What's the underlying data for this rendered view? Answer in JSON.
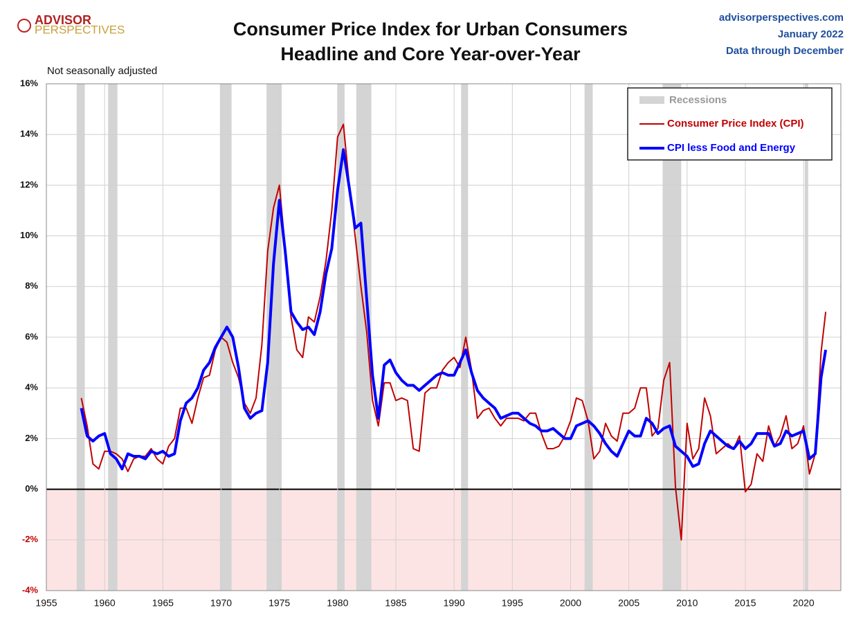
{
  "chart_data": {
    "type": "line",
    "logo": [
      "ADVISOR",
      "PERSPECTIVES"
    ],
    "title": "Consumer Price Index for Urban Consumers",
    "subtitle": "Headline and Core Year-over-Year",
    "source": [
      "advisorperspectives.com",
      "January 2022",
      "Data through December"
    ],
    "note": "Not seasonally adjusted",
    "xlim": [
      1955,
      2023.2
    ],
    "xticks": [
      1955,
      1960,
      1965,
      1970,
      1975,
      1980,
      1985,
      1990,
      1995,
      2000,
      2005,
      2010,
      2015,
      2020
    ],
    "ylim": [
      -4,
      16
    ],
    "yticks": [
      {
        "value": -4,
        "label": "-4%"
      },
      {
        "value": -2,
        "label": "-2%"
      },
      {
        "value": 0,
        "label": "0%"
      },
      {
        "value": 2,
        "label": "2%"
      },
      {
        "value": 4,
        "label": "4%"
      },
      {
        "value": 6,
        "label": "6%"
      },
      {
        "value": 8,
        "label": "8%"
      },
      {
        "value": 10,
        "label": "10%"
      },
      {
        "value": 12,
        "label": "12%"
      },
      {
        "value": 14,
        "label": "14%"
      },
      {
        "value": 16,
        "label": "16%"
      }
    ],
    "grid": true,
    "legend": "top-right",
    "recession_label": "Recessions",
    "recession_color": "#d4d4d4",
    "recessions": [
      {
        "start": 1957.6,
        "end": 1958.3
      },
      {
        "start": 1960.3,
        "end": 1961.1
      },
      {
        "start": 1969.9,
        "end": 1970.9
      },
      {
        "start": 1973.9,
        "end": 1975.2
      },
      {
        "start": 1980.0,
        "end": 1980.6
      },
      {
        "start": 1981.6,
        "end": 1982.9
      },
      {
        "start": 1990.6,
        "end": 1991.2
      },
      {
        "start": 2001.2,
        "end": 2001.9
      },
      {
        "start": 2007.9,
        "end": 2009.5
      },
      {
        "start": 2020.1,
        "end": 2020.4
      }
    ],
    "x": [
      1958,
      1958.5,
      1959,
      1959.5,
      1960,
      1960.5,
      1961,
      1961.5,
      1962,
      1962.5,
      1963,
      1963.5,
      1964,
      1964.5,
      1965,
      1965.5,
      1966,
      1966.5,
      1967,
      1967.5,
      1968,
      1968.5,
      1969,
      1969.5,
      1970,
      1970.5,
      1971,
      1971.5,
      1972,
      1972.5,
      1973,
      1973.5,
      1974,
      1974.5,
      1975,
      1975.5,
      1976,
      1976.5,
      1977,
      1977.5,
      1978,
      1978.5,
      1979,
      1979.5,
      1980,
      1980.5,
      1981,
      1981.5,
      1982,
      1982.5,
      1983,
      1983.5,
      1984,
      1984.5,
      1985,
      1985.5,
      1986,
      1986.5,
      1987,
      1987.5,
      1988,
      1988.5,
      1989,
      1989.5,
      1990,
      1990.5,
      1991,
      1991.5,
      1992,
      1992.5,
      1993,
      1993.5,
      1994,
      1994.5,
      1995,
      1995.5,
      1996,
      1996.5,
      1997,
      1997.5,
      1998,
      1998.5,
      1999,
      1999.5,
      2000,
      2000.5,
      2001,
      2001.5,
      2002,
      2002.5,
      2003,
      2003.5,
      2004,
      2004.5,
      2005,
      2005.5,
      2006,
      2006.5,
      2007,
      2007.5,
      2008,
      2008.5,
      2009,
      2009.5,
      2010,
      2010.5,
      2011,
      2011.5,
      2012,
      2012.5,
      2013,
      2013.5,
      2014,
      2014.5,
      2015,
      2015.5,
      2016,
      2016.5,
      2017,
      2017.5,
      2018,
      2018.5,
      2019,
      2019.5,
      2020,
      2020.5,
      2021,
      2021.5,
      2021.9
    ],
    "series": [
      {
        "name": "Consumer Price Index (CPI)",
        "color": "#c00000",
        "width": 2,
        "values": [
          3.6,
          2.5,
          1.0,
          0.8,
          1.5,
          1.5,
          1.4,
          1.2,
          0.7,
          1.2,
          1.3,
          1.3,
          1.6,
          1.2,
          1.0,
          1.7,
          2.0,
          3.2,
          3.2,
          2.6,
          3.6,
          4.4,
          4.5,
          5.5,
          6.0,
          5.8,
          5.0,
          4.4,
          3.4,
          3.0,
          3.6,
          5.7,
          9.4,
          11.1,
          12.0,
          9.5,
          6.8,
          5.5,
          5.2,
          6.8,
          6.6,
          7.6,
          9.0,
          11.0,
          13.9,
          14.4,
          12.0,
          10.0,
          8.0,
          6.2,
          3.5,
          2.5,
          4.2,
          4.2,
          3.5,
          3.6,
          3.5,
          1.6,
          1.5,
          3.8,
          4.0,
          4.0,
          4.7,
          5.0,
          5.2,
          4.8,
          6.0,
          4.7,
          2.8,
          3.1,
          3.2,
          2.8,
          2.5,
          2.8,
          2.8,
          2.8,
          2.7,
          3.0,
          3.0,
          2.2,
          1.6,
          1.6,
          1.7,
          2.1,
          2.7,
          3.6,
          3.5,
          2.7,
          1.2,
          1.5,
          2.6,
          2.1,
          1.9,
          3.0,
          3.0,
          3.2,
          4.0,
          4.0,
          2.1,
          2.4,
          4.3,
          5.0,
          0.1,
          -2.0,
          2.6,
          1.2,
          1.6,
          3.6,
          2.9,
          1.4,
          1.6,
          1.8,
          1.6,
          2.1,
          -0.1,
          0.2,
          1.4,
          1.1,
          2.5,
          1.7,
          2.1,
          2.9,
          1.6,
          1.8,
          2.5,
          0.6,
          1.4,
          5.4,
          7.0
        ]
      },
      {
        "name": "CPI less Food and Energy",
        "color": "#0000ff",
        "width": 4,
        "values": [
          3.2,
          2.1,
          1.9,
          2.1,
          2.2,
          1.4,
          1.2,
          0.8,
          1.4,
          1.3,
          1.3,
          1.2,
          1.5,
          1.4,
          1.5,
          1.3,
          1.4,
          2.7,
          3.4,
          3.6,
          4.0,
          4.7,
          5.0,
          5.6,
          6.0,
          6.4,
          6.0,
          4.8,
          3.2,
          2.8,
          3.0,
          3.1,
          5.0,
          8.9,
          11.4,
          9.4,
          7.0,
          6.6,
          6.3,
          6.4,
          6.1,
          7.0,
          8.5,
          9.5,
          11.8,
          13.4,
          11.9,
          10.3,
          10.5,
          7.5,
          4.5,
          2.8,
          4.9,
          5.1,
          4.6,
          4.3,
          4.1,
          4.1,
          3.9,
          4.1,
          4.3,
          4.5,
          4.6,
          4.5,
          4.5,
          5.0,
          5.5,
          4.6,
          3.9,
          3.6,
          3.4,
          3.2,
          2.8,
          2.9,
          3.0,
          3.0,
          2.8,
          2.6,
          2.5,
          2.3,
          2.3,
          2.4,
          2.2,
          2.0,
          2.0,
          2.5,
          2.6,
          2.7,
          2.5,
          2.2,
          1.8,
          1.5,
          1.3,
          1.8,
          2.3,
          2.1,
          2.1,
          2.8,
          2.6,
          2.2,
          2.4,
          2.5,
          1.7,
          1.5,
          1.3,
          0.9,
          1.0,
          1.8,
          2.3,
          2.1,
          1.9,
          1.7,
          1.6,
          1.9,
          1.6,
          1.8,
          2.2,
          2.2,
          2.2,
          1.7,
          1.8,
          2.3,
          2.1,
          2.2,
          2.3,
          1.2,
          1.4,
          4.4,
          5.5
        ]
      }
    ]
  }
}
